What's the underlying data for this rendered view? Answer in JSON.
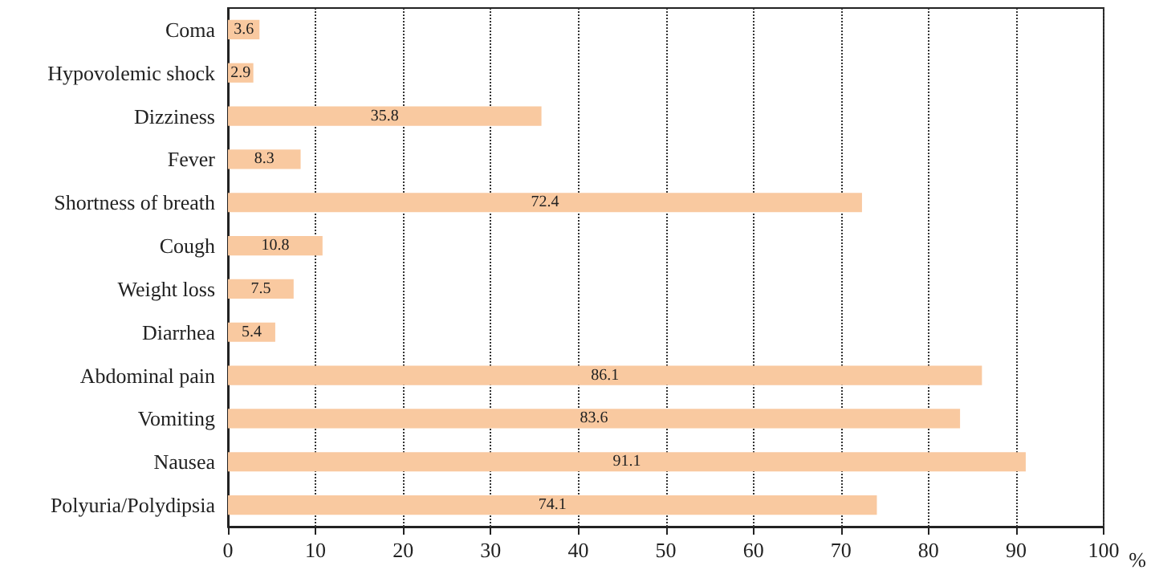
{
  "chart_data": {
    "type": "bar",
    "orientation": "horizontal",
    "categories": [
      "Coma",
      "Hypovolemic shock",
      "Dizziness",
      "Fever",
      "Shortness of breath",
      "Cough",
      "Weight loss",
      "Diarrhea",
      "Abdominal pain",
      "Vomiting",
      "Nausea",
      "Polyuria/Polydipsia"
    ],
    "values": [
      3.6,
      2.9,
      35.8,
      8.3,
      72.4,
      10.8,
      7.5,
      5.4,
      86.1,
      83.6,
      91.1,
      74.1
    ],
    "color": "#f9c9a0",
    "xlabel": "%",
    "xlim": [
      0,
      100
    ],
    "xticks": [
      0,
      10,
      20,
      30,
      40,
      50,
      60,
      70,
      80,
      90,
      100
    ],
    "grid": "x",
    "data_labels": true
  }
}
